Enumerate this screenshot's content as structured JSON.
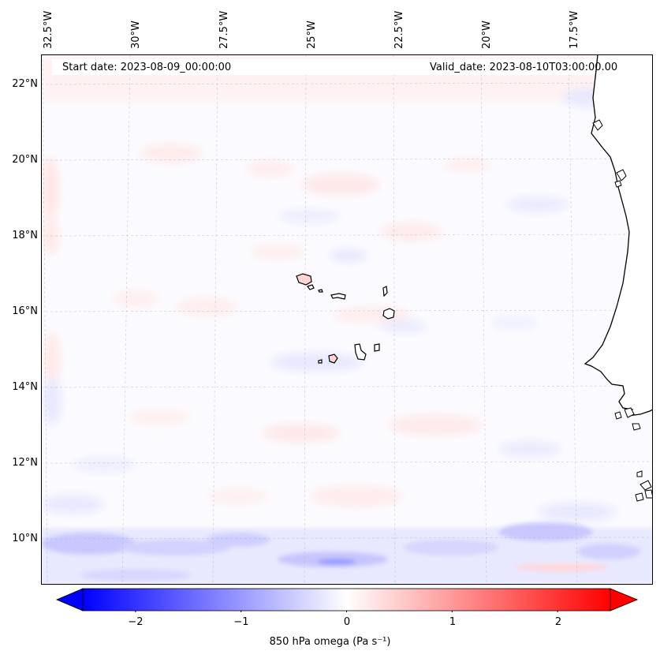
{
  "map": {
    "longitude_labels": [
      "32.5°W",
      "30°W",
      "27.5°W",
      "25°W",
      "22.5°W",
      "20°W",
      "17.5°W"
    ],
    "latitude_labels": [
      "22°N",
      "20°N",
      "18°N",
      "16°N",
      "14°N",
      "12°N",
      "10°N"
    ],
    "start_date": "Start date: 2023-08-09_00:00:00",
    "valid_date": "Valid_date: 2023-08-10T03:00:00.00"
  },
  "colorbar": {
    "ticks": [
      "−2",
      "−1",
      "0",
      "1",
      "2"
    ],
    "tick_values": [
      -2,
      -1,
      0,
      1,
      2
    ],
    "range": [
      -2.5,
      2.5
    ],
    "label": "850 hPa omega (Pa s⁻¹)",
    "colors": {
      "negative": "#0000ff",
      "zero": "#ffffff",
      "positive": "#ff0000"
    }
  }
}
